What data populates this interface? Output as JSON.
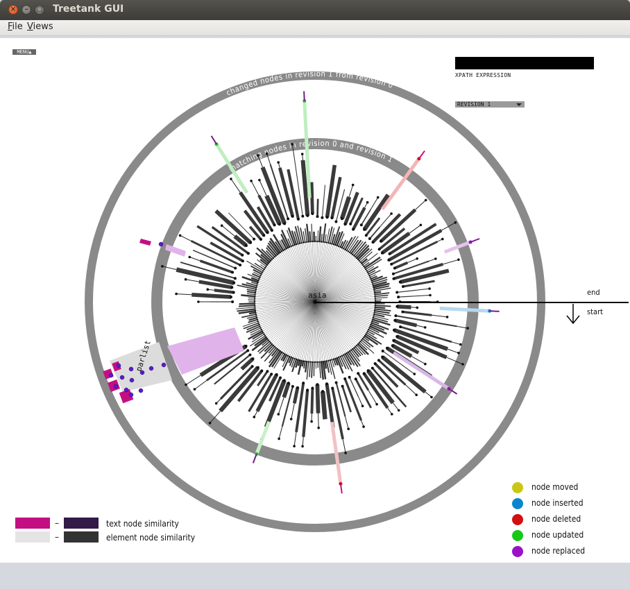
{
  "window": {
    "title": "Treetank GUI"
  },
  "menubar": {
    "file": "File",
    "views": "Views"
  },
  "toolbar": {
    "menu_label": "MENU▲"
  },
  "xpath": {
    "value": "",
    "label": "XPATH EXPRESSION"
  },
  "revision": {
    "selected": "REVISION 1"
  },
  "viz": {
    "root_label": "asia",
    "outer_ring_label": "changed nodes in revision 1 from revision 0",
    "inner_ring_label": "matching nodes in revision 0 and revision 1",
    "highlight_label": "parlist",
    "end_label": "end",
    "start_label": "start"
  },
  "similarity_legend": {
    "text_label": "text node similarity",
    "element_label": "element node similarity",
    "dash": "–",
    "colors": {
      "text_low": "#c40f83",
      "text_high": "#321a49",
      "element_low": "#e4e4e4",
      "element_high": "#333333"
    }
  },
  "change_legend": [
    {
      "label": "node moved",
      "color": "#c8c814"
    },
    {
      "label": "node inserted",
      "color": "#0a86d0"
    },
    {
      "label": "node deleted",
      "color": "#d21010"
    },
    {
      "label": "node updated",
      "color": "#18c818"
    },
    {
      "label": "node replaced",
      "color": "#9a12c8"
    }
  ]
}
